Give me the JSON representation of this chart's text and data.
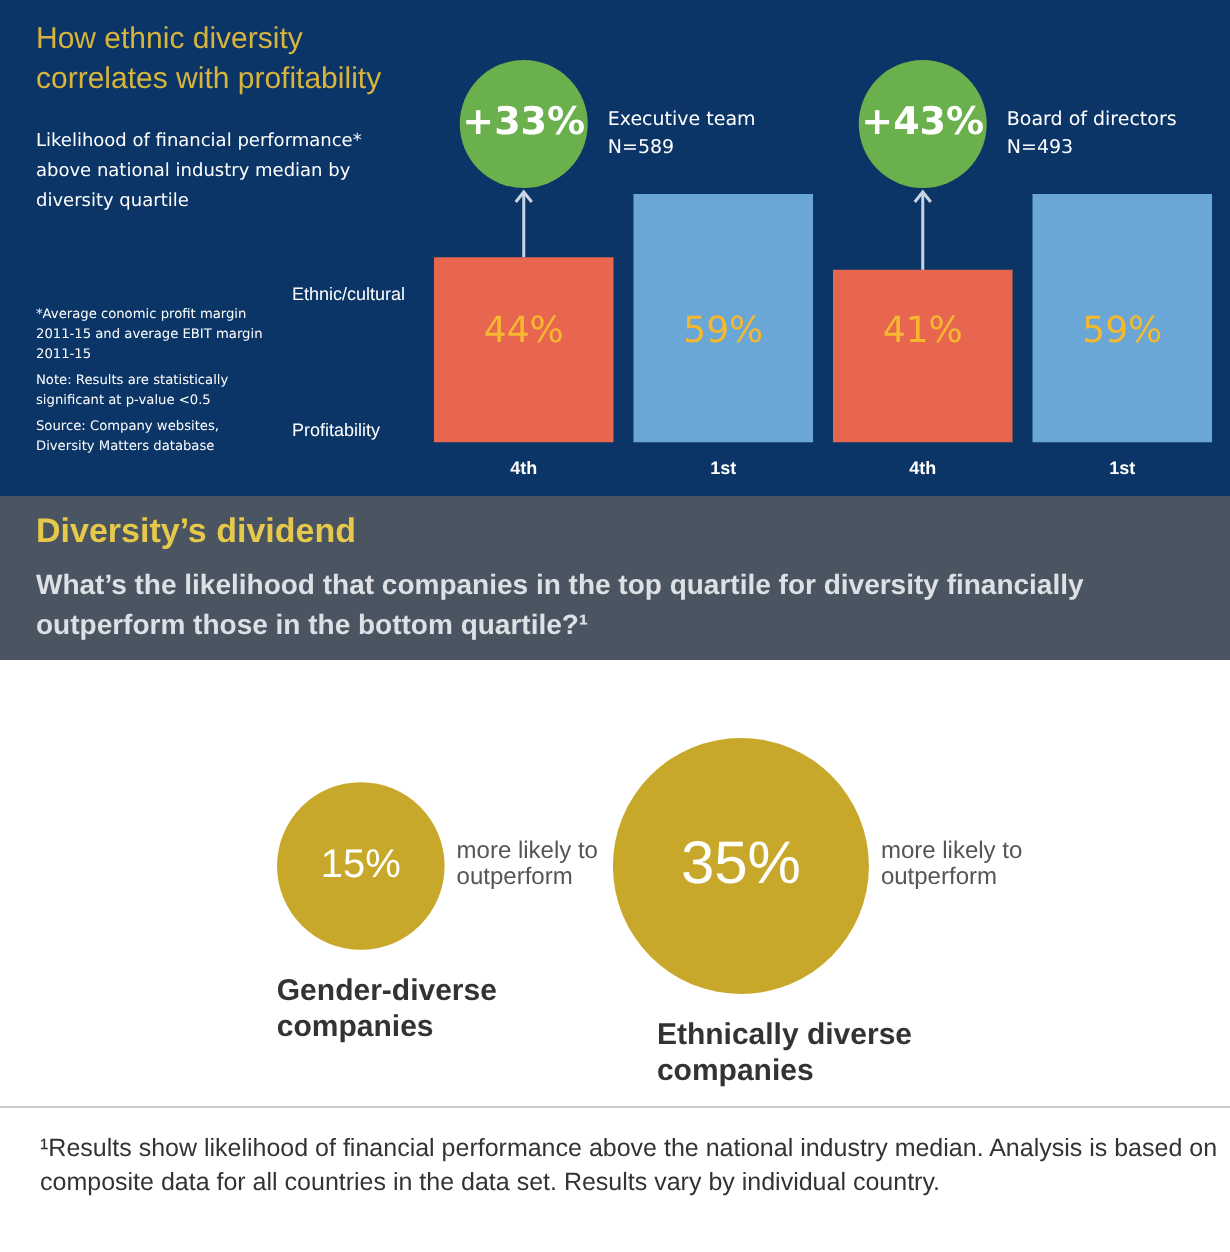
{
  "chart_data": [
    {
      "type": "bar",
      "title": "How ethnic diversity correlates with profitability",
      "subtitle": "Likelihood of financial performance* above national industry median by diversity quartile",
      "categories": [
        "4th",
        "1st",
        "4th",
        "1st"
      ],
      "values": [
        44,
        59,
        41,
        59
      ],
      "colors": [
        "#e8664f",
        "#6aa6d6",
        "#e8664f",
        "#6aa6d6"
      ],
      "value_labels": [
        "44%",
        "59%",
        "41%",
        "59%"
      ],
      "annotations": [
        "Ethnic/cultural",
        "Profitability",
        "+33%",
        "Executive team",
        "N=589",
        "+43%",
        "Board of directors",
        "N=493",
        "*Average conomic profit margin 2011-15 and average EBIT margin 2011-15",
        "Note: Results are statistically significant at p-value <0.5",
        "Source: Company websites, Diversity Matters database"
      ]
    },
    {
      "type": "other",
      "title": "Diversity’s dividend",
      "subtitle": "What’s the likelihood that companies in the top quartile for diversity financially outperform those in the bottom quartile?¹",
      "categories": [
        "Gender-diverse companies",
        "Ethnically diverse companies"
      ],
      "values": [
        15,
        35
      ],
      "colors": [
        "#c8a82a",
        "#c8a82a"
      ],
      "value_labels": [
        "15%",
        "35%"
      ],
      "annotations": [
        "more likely to outperform",
        "more likely to outperform",
        "¹Results show likelihood of financial performance above the national industry median. Analysis is based on composite data for all countries in the data set. Results vary by individual country."
      ]
    }
  ]
}
